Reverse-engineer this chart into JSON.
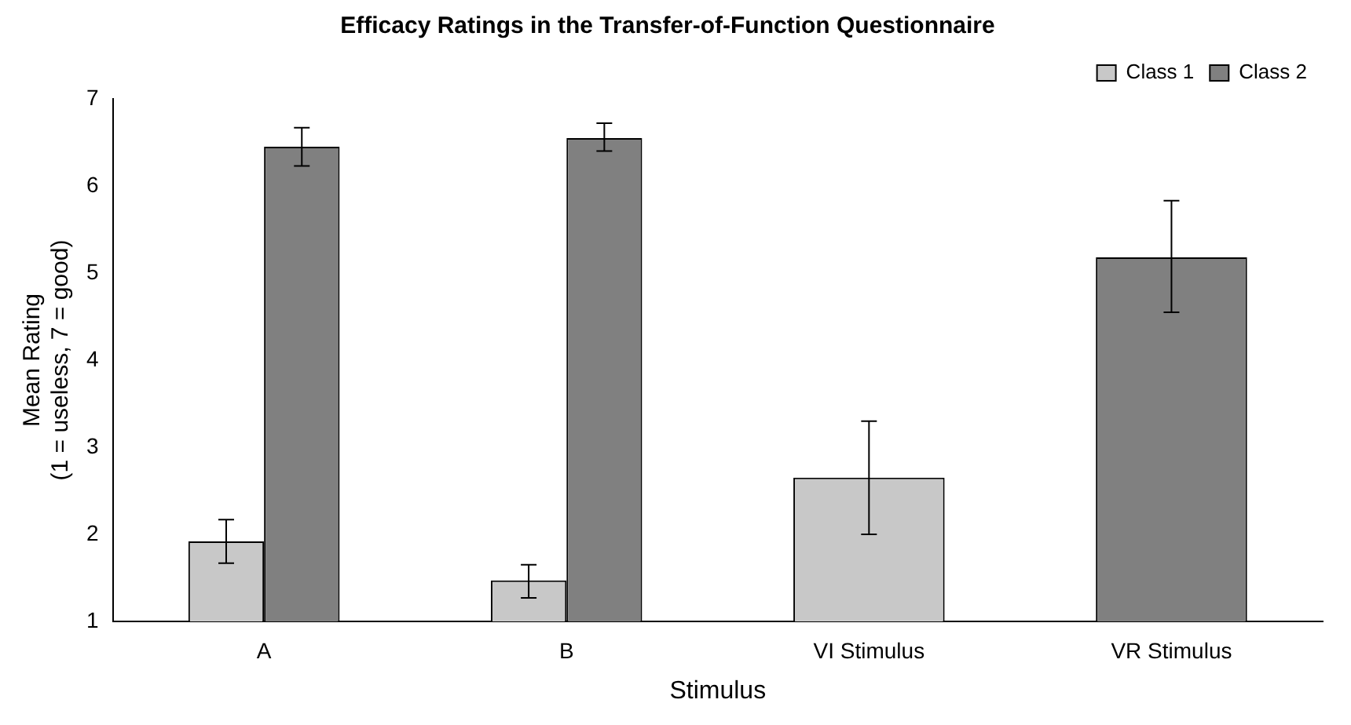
{
  "chart_data": {
    "type": "bar",
    "title": "Efficacy Ratings in the Transfer-of-Function Questionnaire",
    "xlabel": "Stimulus",
    "ylabel": "Mean Rating\n(1 = useless, 7 = good)",
    "categories": [
      "A",
      "B",
      "VI Stimulus",
      "VR Stimulus"
    ],
    "series": [
      {
        "name": "Class 1",
        "color": "#c8c8c8",
        "values": [
          1.92,
          1.47,
          2.65,
          null
        ],
        "errors": [
          [
            1.67,
            2.17
          ],
          [
            1.27,
            1.65
          ],
          [
            2.0,
            3.3
          ],
          null
        ]
      },
      {
        "name": "Class 2",
        "color": "#808080",
        "values": [
          6.45,
          6.55,
          null,
          5.18
        ],
        "errors": [
          [
            6.23,
            6.67
          ],
          [
            6.4,
            6.72
          ],
          null,
          [
            4.55,
            5.83
          ]
        ]
      }
    ],
    "ylim": [
      1,
      7
    ],
    "yticks": [
      1,
      2,
      3,
      4,
      5,
      6,
      7
    ],
    "grid": false,
    "legend": "top right"
  }
}
